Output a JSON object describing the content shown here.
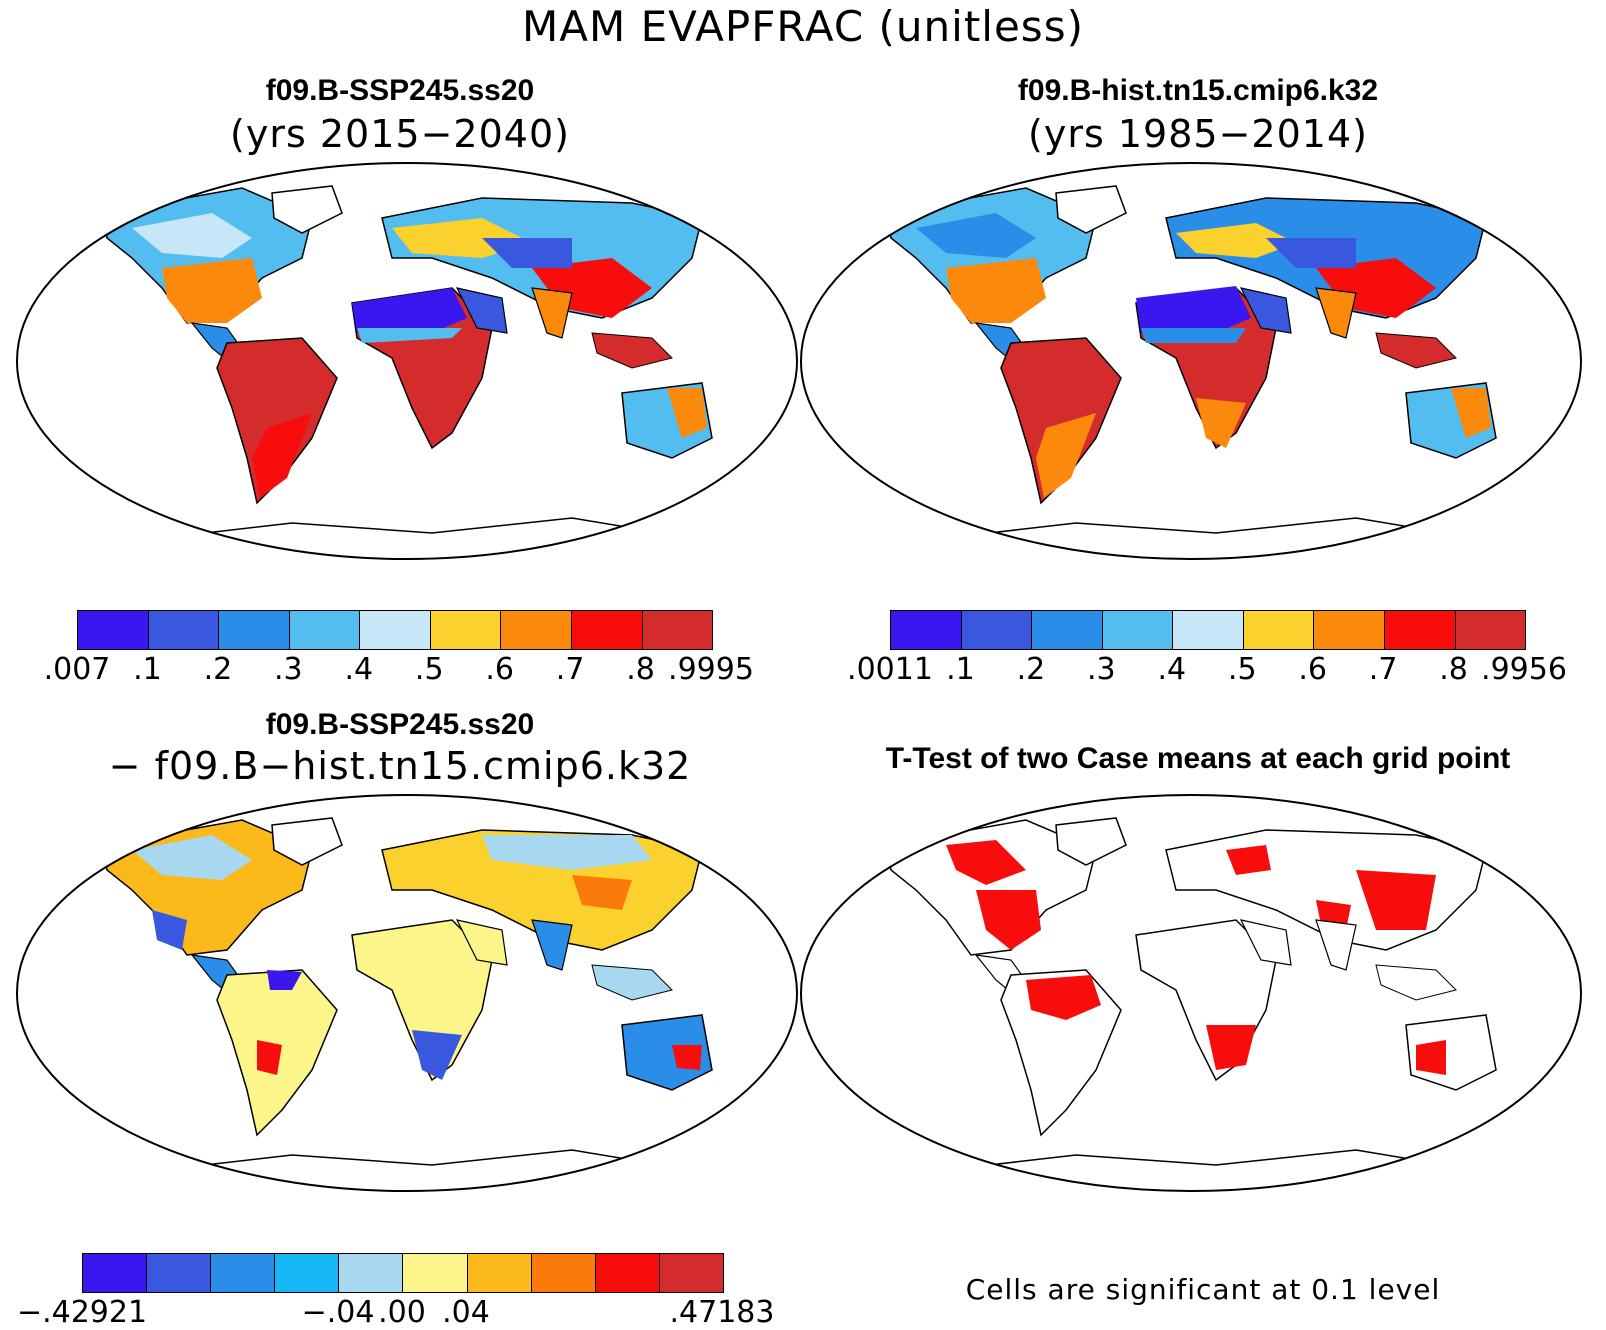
{
  "main_title": "MAM EVAPFRAC (unitless)",
  "panels": [
    {
      "title": "f09.B-SSP245.ss20",
      "subtitle": "(yrs 2015−2040)"
    },
    {
      "title": "f09.B-hist.tn15.cmip6.k32",
      "subtitle": "(yrs 1985−2014)"
    },
    {
      "title": "f09.B-SSP245.ss20",
      "subtitle": "− f09.B−hist.tn15.cmip6.k32"
    },
    {
      "title": "T-Test of two Case means at each grid point",
      "subtitle": ""
    }
  ],
  "colorbar1": {
    "colors": [
      "#3a17ee",
      "#3a58df",
      "#2a8ee8",
      "#54bdf0",
      "#c7e6f7",
      "#fbd22d",
      "#fb8a0c",
      "#f80d0d",
      "#d42c2c"
    ],
    "labels": [
      ".007",
      ".1",
      ".2",
      ".3",
      ".4",
      ".5",
      ".6",
      ".7",
      ".8",
      ".9995"
    ]
  },
  "colorbar2": {
    "colors": [
      "#3a17ee",
      "#3a58df",
      "#2a8ee8",
      "#54bdf0",
      "#c7e6f7",
      "#fbd22d",
      "#fb8a0c",
      "#f80d0d",
      "#d42c2c"
    ],
    "labels": [
      ".0011",
      ".1",
      ".2",
      ".3",
      ".4",
      ".5",
      ".6",
      ".7",
      ".8",
      ".9956"
    ]
  },
  "colorbar3": {
    "colors": [
      "#3a17ee",
      "#3a58df",
      "#2a8ee8",
      "#17b6f5",
      "#a7d8f0",
      "#fbf58a",
      "#fbb91b",
      "#fb7a0c",
      "#f80d0d",
      "#d42c2c"
    ],
    "labels": [
      "−.42921",
      "−.04",
      ".00",
      ".04",
      ".47183"
    ]
  },
  "significance_note": "Cells are significant at 0.1 level"
}
